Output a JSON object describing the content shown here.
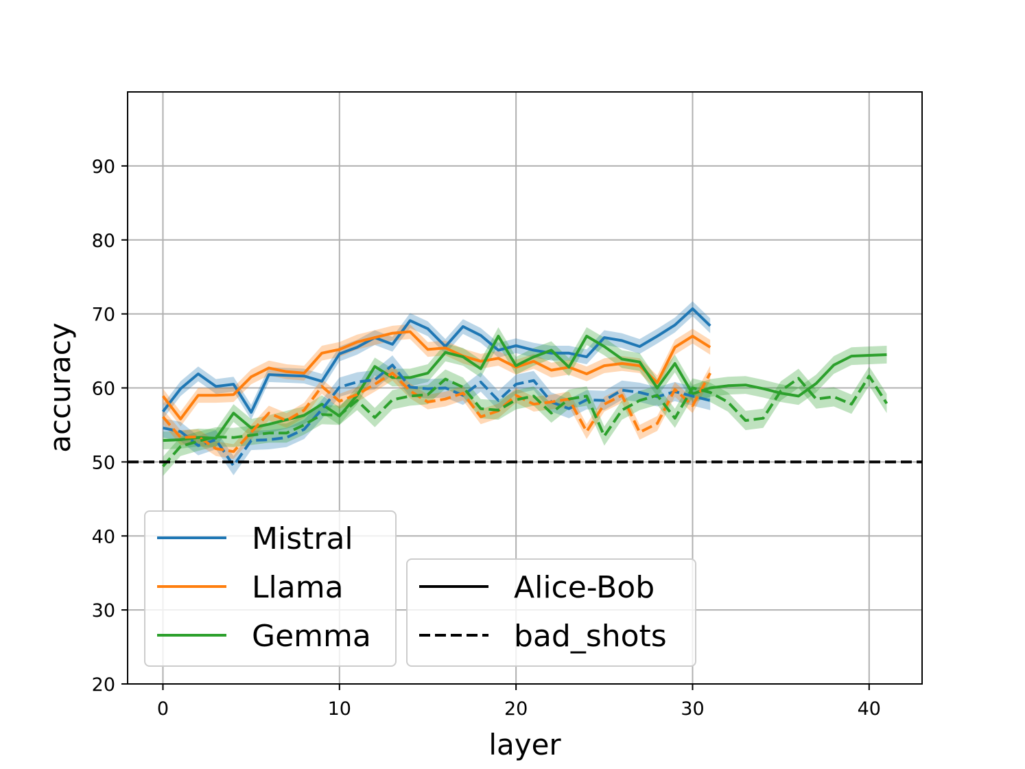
{
  "chart_data": {
    "type": "line",
    "title": "",
    "xlabel": "layer",
    "ylabel": "accuracy",
    "xlim": [
      -2,
      43
    ],
    "ylim": [
      20,
      100
    ],
    "x_ticks": [
      0,
      10,
      20,
      30,
      40
    ],
    "y_ticks": [
      20,
      30,
      40,
      50,
      60,
      70,
      80,
      90
    ],
    "grid": true,
    "reference_line": {
      "y": 50,
      "style": "dashed",
      "color": "#000000"
    },
    "legend_models": {
      "placement": "lower-left",
      "entries": [
        {
          "label": "Mistral",
          "color": "#1f77b4"
        },
        {
          "label": "Llama",
          "color": "#ff7f0e"
        },
        {
          "label": "Gemma",
          "color": "#2ca02c"
        }
      ]
    },
    "legend_styles": {
      "placement": "lower-center",
      "entries": [
        {
          "label": "Alice-Bob",
          "style": "solid"
        },
        {
          "label": "bad_shots",
          "style": "dashed"
        }
      ]
    },
    "series": [
      {
        "model": "Mistral",
        "dataset": "Alice-Bob",
        "color": "#1f77b4",
        "style": "solid",
        "band": 1.0,
        "values": [
          56.8,
          59.9,
          61.9,
          60.2,
          60.5,
          56.7,
          61.8,
          61.7,
          61.6,
          60.9,
          64.6,
          65.5,
          66.8,
          65.9,
          69.1,
          68.0,
          65.6,
          68.3,
          67.1,
          65.1,
          65.7,
          65.1,
          64.7,
          64.7,
          64.2,
          66.8,
          66.4,
          65.6,
          67.0,
          68.5,
          70.7,
          68.4
        ]
      },
      {
        "model": "Llama",
        "dataset": "Alice-Bob",
        "color": "#ff7f0e",
        "style": "solid",
        "band": 1.0,
        "values": [
          58.9,
          55.8,
          59.0,
          59.0,
          59.1,
          61.5,
          62.7,
          62.2,
          62.0,
          64.7,
          65.2,
          66.2,
          66.8,
          67.4,
          67.6,
          65.2,
          65.4,
          64.3,
          63.6,
          64.0,
          62.8,
          63.6,
          62.4,
          62.8,
          61.9,
          63.0,
          63.3,
          63.0,
          60.7,
          65.5,
          67.0,
          65.5
        ]
      },
      {
        "model": "Gemma",
        "dataset": "Alice-Bob",
        "color": "#2ca02c",
        "style": "solid",
        "band": 1.2,
        "values": [
          52.9,
          53.0,
          53.3,
          53.2,
          56.6,
          54.6,
          55.1,
          55.7,
          56.3,
          57.8,
          56.2,
          59.0,
          62.9,
          61.4,
          61.4,
          62.0,
          64.8,
          64.2,
          62.6,
          67.0,
          63.0,
          64.2,
          65.1,
          62.8,
          67.0,
          65.6,
          63.9,
          63.5,
          60.0,
          63.3,
          59.2,
          60.0,
          60.3,
          60.4,
          59.9,
          59.3,
          58.9,
          60.6,
          63.1,
          64.3,
          64.4,
          64.5
        ]
      },
      {
        "model": "Mistral",
        "dataset": "bad_shots",
        "color": "#1f77b4",
        "style": "dashed",
        "band": 1.3,
        "values": [
          54.6,
          54.1,
          52.2,
          53.0,
          49.5,
          52.9,
          53.0,
          53.3,
          54.4,
          57.1,
          60.1,
          60.8,
          61.1,
          63.1,
          60.1,
          59.9,
          60.0,
          59.0,
          60.8,
          58.3,
          60.5,
          61.0,
          58.1,
          57.2,
          58.4,
          58.3,
          59.7,
          59.4,
          58.8,
          59.5,
          58.9,
          58.3
        ]
      },
      {
        "model": "Llama",
        "dataset": "bad_shots",
        "color": "#ff7f0e",
        "style": "dashed",
        "band": 1.0,
        "values": [
          56.1,
          53.3,
          53.4,
          51.8,
          51.4,
          54.0,
          56.6,
          55.6,
          57.0,
          60.2,
          58.2,
          59.1,
          60.5,
          62.0,
          59.6,
          58.1,
          58.5,
          59.3,
          56.1,
          56.9,
          59.0,
          57.8,
          58.1,
          58.5,
          54.1,
          57.8,
          59.0,
          54.0,
          55.2,
          59.8,
          57.6,
          62.0
        ]
      },
      {
        "model": "Gemma",
        "dataset": "bad_shots",
        "color": "#2ca02c",
        "style": "dashed",
        "band": 1.3,
        "values": [
          49.4,
          52.1,
          52.8,
          53.4,
          53.3,
          53.6,
          53.9,
          53.9,
          55.0,
          56.4,
          56.3,
          58.3,
          56.0,
          58.4,
          58.9,
          59.1,
          61.2,
          60.1,
          57.2,
          57.0,
          58.4,
          58.9,
          56.6,
          58.5,
          58.9,
          53.5,
          57.0,
          58.3,
          59.0,
          55.9,
          60.0,
          59.4,
          58.1,
          55.6,
          55.9,
          59.6,
          61.3,
          58.5,
          58.8,
          57.8,
          61.6,
          57.9
        ]
      }
    ]
  }
}
